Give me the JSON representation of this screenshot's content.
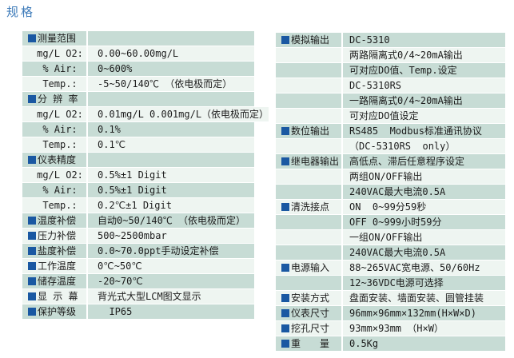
{
  "page_title": "规格",
  "colors": {
    "title_blue": "#3f7cba",
    "row_teal": "#c7dcd5",
    "row_light": "#eef5f1",
    "bullet_blue": "#1a58a2",
    "text": "#1c1c1c"
  },
  "left_table": {
    "rows": [
      {
        "header": true,
        "label": "测量范围",
        "value": ""
      },
      {
        "header": false,
        "label": "mg/L O2:",
        "value": "0.00~60.00mg/L"
      },
      {
        "header": false,
        "label": "% Air:",
        "value": "0~600%"
      },
      {
        "header": false,
        "label": "Temp.:",
        "value": "-5~50/140℃ （依电极而定）"
      },
      {
        "header": true,
        "label": "分 辨 率",
        "value": ""
      },
      {
        "header": false,
        "label": "mg/L O2:",
        "value": "0.01mg/L 0.001mg/L（依电极而定）"
      },
      {
        "header": false,
        "label": "% Air:",
        "value": "0.1%"
      },
      {
        "header": false,
        "label": "Temp.:",
        "value": "0.1℃"
      },
      {
        "header": true,
        "label": "仪表精度",
        "value": ""
      },
      {
        "header": false,
        "label": "mg/L O2:",
        "value": "0.5%±1 Digit"
      },
      {
        "header": false,
        "label": "% Air:",
        "value": "0.5%±1 Digit"
      },
      {
        "header": false,
        "label": "Temp.:",
        "value": "0.2℃±1 Digit"
      },
      {
        "header": true,
        "label": "温度补偿",
        "value": "自动0~50/140℃ （依电极而定）"
      },
      {
        "header": true,
        "label": "压力补偿",
        "value": "500~2500mbar"
      },
      {
        "header": true,
        "label": "盐度补偿",
        "value": "0.0~70.0ppt手动设定补偿"
      },
      {
        "header": true,
        "label": "工作温度",
        "value": "0℃~50℃"
      },
      {
        "header": true,
        "label": "储存温度",
        "value": "-20~70℃"
      },
      {
        "header": true,
        "label": "显 示 幕",
        "value": "背光式大型LCM图文显示"
      },
      {
        "header": true,
        "label": "保护等级",
        "value": "  IP65"
      }
    ]
  },
  "right_table": {
    "rows": [
      {
        "header": true,
        "label": "模拟输出",
        "value": "DC-5310"
      },
      {
        "header": false,
        "label": "",
        "value": "两路隔离式0/4~20mA输出"
      },
      {
        "header": false,
        "label": "",
        "value": "可对应DO值、Temp.设定"
      },
      {
        "header": false,
        "label": "",
        "value": "DC-5310RS"
      },
      {
        "header": false,
        "label": "",
        "value": "一路隔离式0/4~20mA输出"
      },
      {
        "header": false,
        "label": "",
        "value": "可对应DO值设定"
      },
      {
        "header": true,
        "label": "数位输出",
        "value": "RS485  Modbus标准通讯协议"
      },
      {
        "header": false,
        "label": "",
        "value": "（DC-5310RS  only）"
      },
      {
        "header": true,
        "label": "继电器输出",
        "value": "高低点、滞后任意程序设定"
      },
      {
        "header": false,
        "label": "",
        "value": "两组ON/OFF输出"
      },
      {
        "header": false,
        "label": "",
        "value": "240VAC最大电流0.5A"
      },
      {
        "header": true,
        "label": "清洗接点",
        "value": "ON  0~99分59秒"
      },
      {
        "header": false,
        "label": "",
        "value": "OFF 0~999小时59分"
      },
      {
        "header": false,
        "label": "",
        "value": "一组ON/OFF输出"
      },
      {
        "header": false,
        "label": "",
        "value": "240VAC最大电流0.5A"
      },
      {
        "header": true,
        "label": "电源输入",
        "value": "88~265VAC宽电源、50/60Hz"
      },
      {
        "header": false,
        "label": "",
        "value": "12~36VDC电源可选择"
      },
      {
        "header": true,
        "label": "安装方式",
        "value": "盘面安装、墙面安装、圆管挂装"
      },
      {
        "header": true,
        "label": "仪表尺寸",
        "value": "96mm×96mm×132mm(H×W×D)"
      },
      {
        "header": true,
        "label": "挖孔尺寸",
        "value": "93mm×93mm （H×W）"
      },
      {
        "header": true,
        "label": "重　　量",
        "value": "0.5Kg"
      }
    ]
  }
}
